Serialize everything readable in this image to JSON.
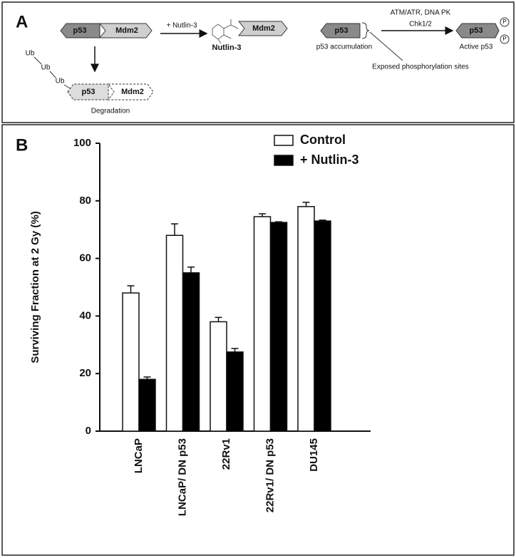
{
  "panel_a": {
    "label": "A",
    "p53_left": "p53",
    "mdm2_left": "Mdm2",
    "plus_nutlin": "+ Nutlin-3",
    "mdm2_bound": "Mdm2",
    "nutlin_name": "Nutlin-3",
    "ub": [
      "Ub",
      "Ub",
      "Ub"
    ],
    "p53_degraded": "p53",
    "mdm2_degraded": "Mdm2",
    "degradation": "Degradation",
    "p53_free": "p53",
    "p53_accumulation": "p53 accumulation",
    "kinases": "ATM/ATR, DNA PK",
    "chk": "Chk1/2",
    "p53_active": "p53",
    "phospho": [
      "P",
      "P"
    ],
    "active_p53": "Active p53",
    "exposed_sites": "Exposed phosphorylation sites"
  },
  "panel_b_label": "B",
  "chart_data": {
    "type": "bar",
    "ylabel": "Surviving Fraction at 2 Gy (%)",
    "categories": [
      "LNCaP",
      "LNCaP/ DN p53",
      "22Rv1",
      "22Rv1/ DN p53",
      "DU145"
    ],
    "series": [
      {
        "name": "Control",
        "color": "#ffffff",
        "values": [
          48,
          68,
          38,
          74.5,
          78
        ],
        "errors": [
          2.5,
          4,
          1.5,
          1,
          1.5
        ]
      },
      {
        "name": "+ Nutlin-3",
        "color": "#000000",
        "values": [
          18,
          55,
          27.5,
          72.5,
          73
        ],
        "errors": [
          0.8,
          2,
          1.2,
          0.2,
          0.3
        ]
      }
    ],
    "ylim": [
      0,
      100
    ],
    "yticks": [
      0,
      20,
      40,
      60,
      80,
      100
    ],
    "grid": false,
    "legend": "top-right"
  }
}
